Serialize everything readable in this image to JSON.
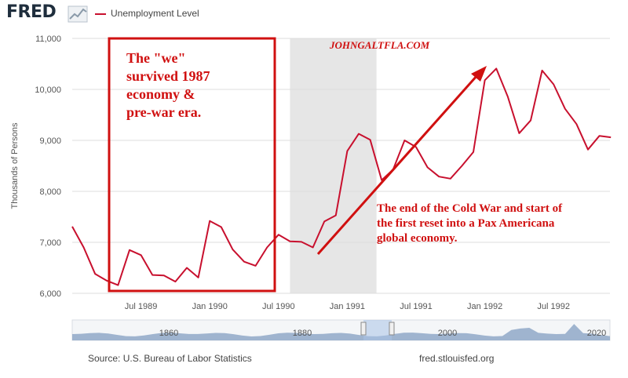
{
  "header": {
    "logo_text": "FRED",
    "logo_icon": "chart-line-icon",
    "legend_label": "Unemployment Level"
  },
  "footer": {
    "source": "Source: U.S. Bureau of Labor Statistics",
    "url": "fred.stlouisfed.org"
  },
  "colors": {
    "series": "#c8102e",
    "annotation": "#d01010",
    "recession_shade": "#e6e6e6",
    "navigator": "#8fa8c8"
  },
  "chart_data": {
    "type": "line",
    "ylabel": "Thousands of Persons",
    "ylim": [
      6000,
      11000
    ],
    "yticks": [
      6000,
      7000,
      8000,
      9000,
      10000,
      11000
    ],
    "ytick_labels": [
      "6,000",
      "7,000",
      "8,000",
      "9,000",
      "10,000",
      "11,000"
    ],
    "xticks": [
      "1989-07",
      "1990-01",
      "1990-07",
      "1991-01",
      "1991-07",
      "1992-01",
      "1992-07"
    ],
    "xtick_labels": [
      "Jul 1989",
      "Jan 1990",
      "Jul 1990",
      "Jan 1991",
      "Jul 1991",
      "Jan 1992",
      "Jul 1992"
    ],
    "grid": true,
    "recession": {
      "start": "1990-08",
      "end": "1991-03"
    },
    "series": [
      {
        "name": "Unemployment Level",
        "x": [
          "1989-01",
          "1989-02",
          "1989-03",
          "1989-04",
          "1989-05",
          "1989-06",
          "1989-07",
          "1989-08",
          "1989-09",
          "1989-10",
          "1989-11",
          "1989-12",
          "1990-01",
          "1990-02",
          "1990-03",
          "1990-04",
          "1990-05",
          "1990-06",
          "1990-07",
          "1990-08",
          "1990-09",
          "1990-10",
          "1990-11",
          "1990-12",
          "1991-01",
          "1991-02",
          "1991-03",
          "1991-04",
          "1991-05",
          "1991-06",
          "1991-07",
          "1991-08",
          "1991-09",
          "1991-10",
          "1991-11",
          "1991-12",
          "1992-01",
          "1992-02",
          "1992-03",
          "1992-04",
          "1992-05",
          "1992-06",
          "1992-07",
          "1992-08",
          "1992-09",
          "1992-10",
          "1992-11",
          "1992-12"
        ],
        "y": [
          7310,
          6900,
          6380,
          6250,
          6160,
          6850,
          6750,
          6360,
          6350,
          6230,
          6500,
          6310,
          7420,
          7300,
          6860,
          6620,
          6540,
          6900,
          7150,
          7020,
          7010,
          6900,
          7410,
          7530,
          8790,
          9130,
          9010,
          8220,
          8430,
          9000,
          8870,
          8470,
          8290,
          8250,
          8500,
          8770,
          10180,
          10410,
          9860,
          9140,
          9390,
          10370,
          10100,
          9620,
          9320,
          8820,
          9090,
          9060
        ]
      }
    ],
    "annotations": [
      {
        "id": "box-text",
        "lines": [
          "The \"we\"",
          "survived 1987",
          "economy &",
          "pre-war era."
        ]
      },
      {
        "id": "watermark",
        "text": "JOHNGALTFLA.COM"
      },
      {
        "id": "arrow-text",
        "lines": [
          "The end of the Cold War and start of",
          "the first reset into a Pax Americana",
          "global economy."
        ]
      }
    ],
    "navigator_labels": [
      "1860",
      "1880",
      "2000",
      "2020"
    ]
  }
}
